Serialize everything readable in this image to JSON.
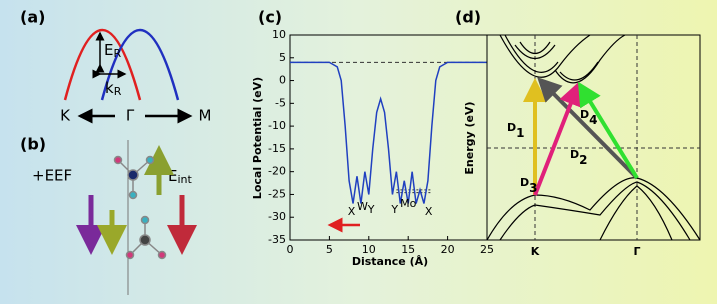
{
  "panel_a": {
    "label": "(a)",
    "energy": "E",
    "energy_sub": "R",
    "momentum": "k",
    "momentum_sub": "R",
    "k_left": "K",
    "k_center": "Γ",
    "k_right": "M"
  },
  "panel_b": {
    "label": "(b)",
    "field": "+EEF",
    "internal": "E",
    "internal_sub": "int"
  },
  "chart_data": {
    "type": "line",
    "title": "(c)",
    "xlabel": "Distance (Å)",
    "ylabel": "Local Potential (eV)",
    "x": [
      0,
      5,
      6,
      6.5,
      7,
      7.5,
      8,
      8.5,
      9,
      9.5,
      10,
      10.5,
      11,
      11.5,
      12,
      12.5,
      13,
      13.5,
      14,
      14.5,
      15,
      15.5,
      16,
      16.5,
      17,
      17.5,
      18,
      18.5,
      19,
      20,
      25
    ],
    "series": [
      {
        "color": "#2040c0",
        "values": [
          4,
          4,
          3,
          0,
          -10,
          -22,
          -27,
          -21,
          -27,
          -20,
          -25,
          -15,
          -7,
          -4,
          -7,
          -15,
          -25,
          -20,
          -27,
          -22,
          -27,
          -20,
          -27,
          -24,
          -27,
          -22,
          -10,
          0,
          3,
          4,
          4
        ]
      }
    ],
    "xlim": [
      0,
      25
    ],
    "ylim": [
      -35,
      10
    ],
    "xticks": [
      0,
      5,
      10,
      15,
      20,
      25
    ],
    "yticks": [
      -35,
      -30,
      -25,
      -20,
      -15,
      -10,
      -5,
      0,
      5,
      10
    ],
    "vacuum_level": 4,
    "annotations": [
      "X",
      "W",
      "Y",
      "Y",
      "Mo",
      "X"
    ]
  },
  "panel_d": {
    "label": "(d)",
    "ylabel": "Energy (eV)",
    "k_points": [
      "K",
      "Γ"
    ],
    "transitions": [
      {
        "name": "D",
        "sub": "1",
        "color": "#e0c020"
      },
      {
        "name": "D",
        "sub": "2",
        "color": "#555555"
      },
      {
        "name": "D",
        "sub": "3",
        "color": "#e0207a"
      },
      {
        "name": "D",
        "sub": "4",
        "color": "#30e030"
      }
    ]
  }
}
